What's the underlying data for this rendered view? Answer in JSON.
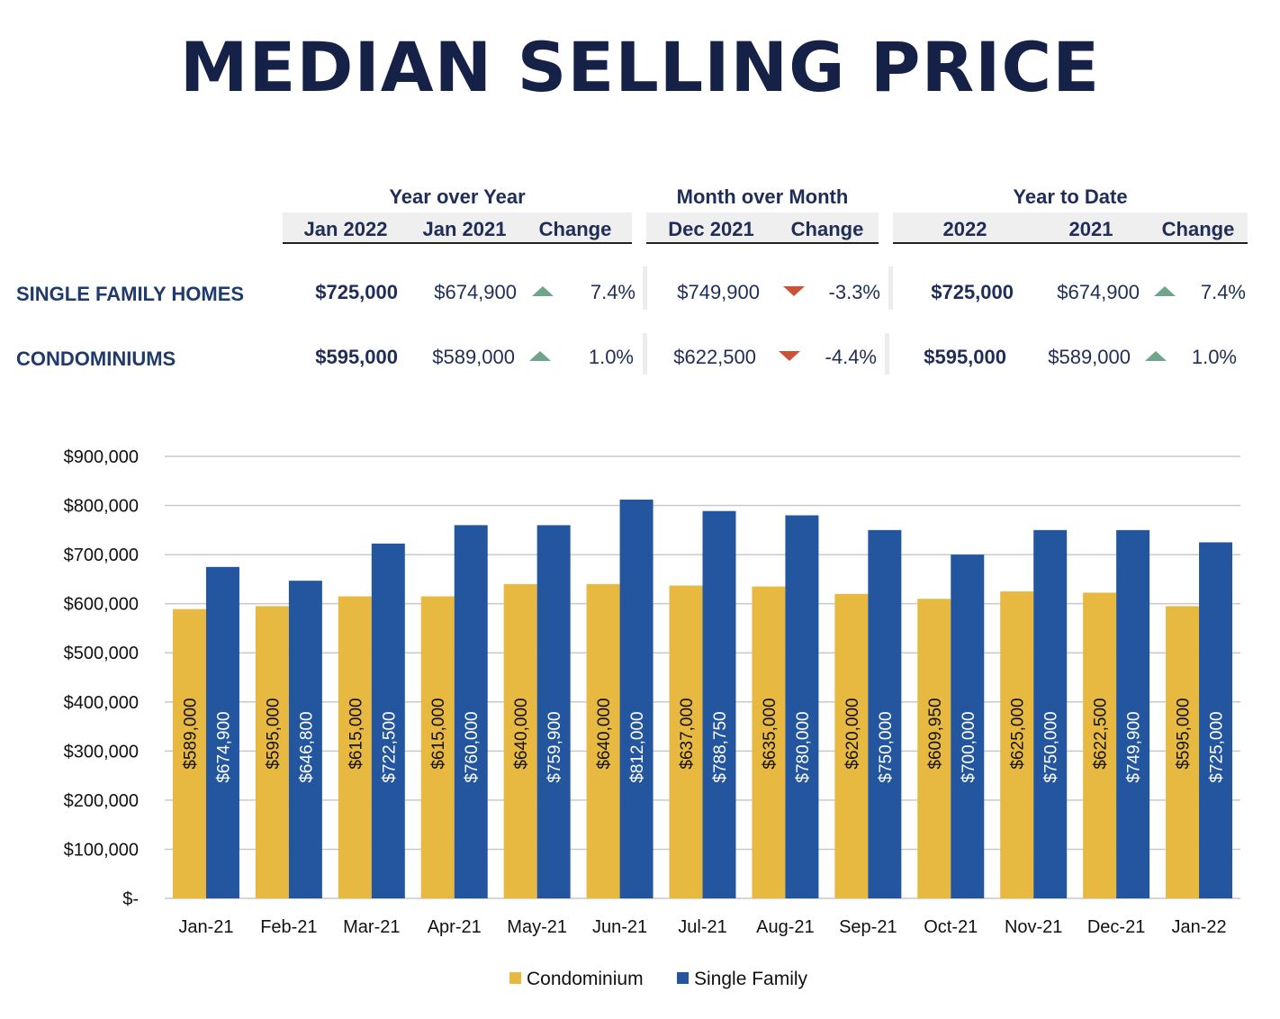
{
  "title": "MEDIAN SELLING PRICE",
  "summary": {
    "groups": [
      {
        "title": "Year over Year",
        "headers": [
          "Jan 2022",
          "Jan 2021",
          "Change"
        ]
      },
      {
        "title": "Month over Month",
        "headers": [
          "Dec 2021",
          "Change"
        ]
      },
      {
        "title": "Year to Date",
        "headers": [
          "2022",
          "2021",
          "Change"
        ]
      }
    ],
    "rows": [
      {
        "label": "SINGLE FAMILY HOMES",
        "yoy": {
          "current": "$725,000",
          "prior": "$674,900",
          "direction": "up",
          "change": "7.4%"
        },
        "mom": {
          "prior": "$749,900",
          "direction": "down",
          "change": "-3.3%"
        },
        "ytd": {
          "current": "$725,000",
          "prior": "$674,900",
          "direction": "up",
          "change": "7.4%"
        }
      },
      {
        "label": "CONDOMINIUMS",
        "yoy": {
          "current": "$595,000",
          "prior": "$589,000",
          "direction": "up",
          "change": "1.0%"
        },
        "mom": {
          "prior": "$622,500",
          "direction": "down",
          "change": "-4.4%"
        },
        "ytd": {
          "current": "$595,000",
          "prior": "$589,000",
          "direction": "up",
          "change": "1.0%"
        }
      }
    ]
  },
  "colors": {
    "condo": "#e8b940",
    "single_family": "#2456a0",
    "up": "#6fa58a",
    "down": "#c8553a",
    "title": "#162147",
    "text": "#1f2d57"
  },
  "chart_data": {
    "type": "bar",
    "title": "",
    "xlabel": "",
    "ylabel": "",
    "ylim": [
      0,
      900000
    ],
    "y_ticks": [
      0,
      100000,
      200000,
      300000,
      400000,
      500000,
      600000,
      700000,
      800000,
      900000
    ],
    "y_tick_labels": [
      "$-",
      "$100,000",
      "$200,000",
      "$300,000",
      "$400,000",
      "$500,000",
      "$600,000",
      "$700,000",
      "$800,000",
      "$900,000"
    ],
    "grid": true,
    "legend_position": "bottom",
    "categories": [
      "Jan-21",
      "Feb-21",
      "Mar-21",
      "Apr-21",
      "May-21",
      "Jun-21",
      "Jul-21",
      "Aug-21",
      "Sep-21",
      "Oct-21",
      "Nov-21",
      "Dec-21",
      "Jan-22"
    ],
    "series": [
      {
        "name": "Condominium",
        "values": [
          589000,
          595000,
          615000,
          615000,
          640000,
          640000,
          637000,
          635000,
          620000,
          609950,
          625000,
          622500,
          595000
        ],
        "labels": [
          "$589,000",
          "$595,000",
          "$615,000",
          "$615,000",
          "$640,000",
          "$640,000",
          "$637,000",
          "$635,000",
          "$620,000",
          "$609,950",
          "$625,000",
          "$622,500",
          "$595,000"
        ]
      },
      {
        "name": "Single Family",
        "values": [
          674900,
          646800,
          722500,
          760000,
          759900,
          812000,
          788750,
          780000,
          750000,
          700000,
          750000,
          749900,
          725000
        ],
        "labels": [
          "$674,900",
          "$646,800",
          "$722,500",
          "$760,000",
          "$759,900",
          "$812,000",
          "$788,750",
          "$780,000",
          "$750,000",
          "$700,000",
          "$750,000",
          "$749,900",
          "$725,000"
        ]
      }
    ]
  }
}
